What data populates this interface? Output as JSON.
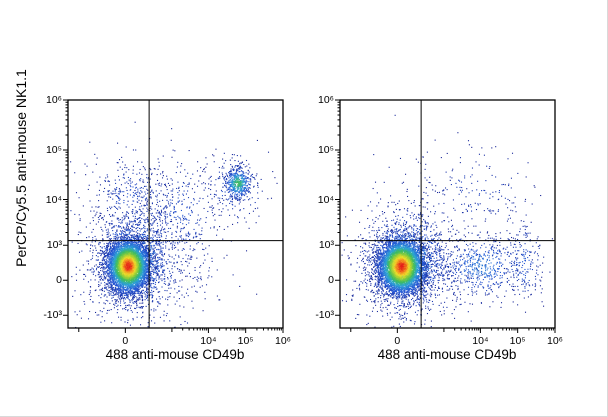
{
  "figure": {
    "type": "flow-cytometry-dot-plots",
    "panel_count": 2,
    "y_axis_label": "PerCP/Cy5.5 anti-mouse NK1.1",
    "x_axis_label": "488 anti-mouse CD49b"
  },
  "chart_data": [
    {
      "type": "scatter",
      "subtype": "flow-pseudocolor-density",
      "panel": "left",
      "xlabel": "488 anti-mouse CD49b",
      "ylabel": "PerCP/Cy5.5 anti-mouse NK1.1",
      "x_scale": "biexponential",
      "y_scale": "biexponential",
      "x_range": [
        -2000,
        1000000
      ],
      "y_range": [
        -2000,
        1000000
      ],
      "x_tick_values": [
        0,
        10000,
        100000,
        1000000
      ],
      "x_tick_labels": [
        "0",
        "10⁴",
        "10⁵",
        "10⁶"
      ],
      "y_tick_values": [
        1000000,
        100000,
        10000,
        1000,
        0,
        -1000
      ],
      "y_tick_labels": [
        "10⁶",
        "10⁵",
        "10⁴",
        "10³",
        "0",
        "-10³"
      ],
      "quadrant_gate": {
        "x": 200,
        "y": 1300
      },
      "populations": [
        {
          "name": "background-sparse",
          "cx": 100,
          "cy": 600,
          "sx": 1.1,
          "sy": 0.95,
          "n": 600,
          "intensity": 0.13,
          "seed": 107
        },
        {
          "name": "bridge-to-nk",
          "cx": 1700,
          "cy": 5000,
          "sx": 0.5,
          "sy": 0.5,
          "n": 300,
          "intensity": 0.18,
          "seed": 104
        },
        {
          "name": "nk11-pos-cd49b-neg",
          "cx": 20,
          "cy": 12000,
          "sx": 0.5,
          "sy": 0.38,
          "n": 240,
          "intensity": 0.17,
          "seed": 103
        },
        {
          "name": "nk-double-positive-halo",
          "cx": 55000,
          "cy": 18000,
          "sx": 0.4,
          "sy": 0.33,
          "n": 220,
          "intensity": 0.22,
          "seed": 106
        },
        {
          "name": "nk-double-positive-core",
          "cx": 60000,
          "cy": 22000,
          "sx": 0.17,
          "sy": 0.15,
          "n": 430,
          "intensity": 0.55,
          "seed": 105
        },
        {
          "name": "main-double-negative-halo",
          "cx": 30,
          "cy": 330,
          "sx": 0.55,
          "sy": 0.5,
          "n": 1400,
          "intensity": 0.4,
          "seed": 102
        },
        {
          "name": "main-double-negative-core",
          "cx": 10,
          "cy": 240,
          "sx": 0.28,
          "sy": 0.26,
          "n": 5200,
          "intensity": 1.0,
          "seed": 101
        }
      ]
    },
    {
      "type": "scatter",
      "subtype": "flow-pseudocolor-density",
      "panel": "right",
      "xlabel": "488 anti-mouse CD49b",
      "ylabel": "PerCP/Cy5.5 anti-mouse NK1.1",
      "x_scale": "biexponential",
      "y_scale": "biexponential",
      "x_range": [
        -2000,
        1000000
      ],
      "y_range": [
        -2000,
        1000000
      ],
      "x_tick_values": [
        0,
        10000,
        100000,
        1000000
      ],
      "x_tick_labels": [
        "0",
        "10⁴",
        "10⁵",
        "10⁶"
      ],
      "y_tick_values": [
        1000000,
        100000,
        10000,
        1000,
        0,
        -1000
      ],
      "y_tick_labels": [
        "10⁶",
        "10⁵",
        "10⁴",
        "10³",
        "0",
        "-10³"
      ],
      "quadrant_gate": {
        "x": 200,
        "y": 1300
      },
      "populations": [
        {
          "name": "background-sparse",
          "cx": 150,
          "cy": 500,
          "sx": 1.05,
          "sy": 0.9,
          "n": 450,
          "intensity": 0.12,
          "seed": 206
        },
        {
          "name": "upper-sparse",
          "cx": 8000,
          "cy": 15000,
          "sx": 0.75,
          "sy": 0.5,
          "n": 150,
          "intensity": 0.12,
          "seed": 205
        },
        {
          "name": "cd49b-low-trail",
          "cx": 10000,
          "cy": 240,
          "sx": 0.6,
          "sy": 0.33,
          "n": 550,
          "intensity": 0.28,
          "seed": 203
        },
        {
          "name": "cd49b-high-specks",
          "cx": 150000,
          "cy": 300,
          "sx": 0.25,
          "sy": 0.4,
          "n": 160,
          "intensity": 0.2,
          "seed": 204
        },
        {
          "name": "main-double-negative-halo",
          "cx": 40,
          "cy": 320,
          "sx": 0.58,
          "sy": 0.5,
          "n": 1400,
          "intensity": 0.4,
          "seed": 202
        },
        {
          "name": "main-double-negative-core",
          "cx": 15,
          "cy": 230,
          "sx": 0.3,
          "sy": 0.27,
          "n": 5200,
          "intensity": 1.0,
          "seed": 201
        }
      ]
    }
  ]
}
